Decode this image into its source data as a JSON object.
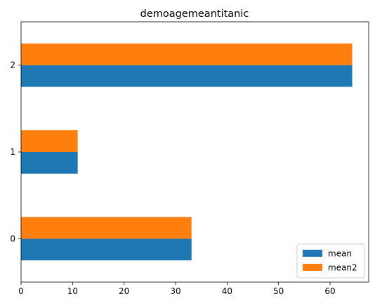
{
  "chart_data": {
    "type": "bar",
    "orientation": "horizontal",
    "title": "demoagemeantitanic",
    "xlabel": "",
    "ylabel": "",
    "categories": [
      "0",
      "1",
      "2"
    ],
    "series": [
      {
        "name": "mean",
        "values": [
          33.1,
          11.0,
          64.3
        ],
        "color": "#1f77b4"
      },
      {
        "name": "mean2",
        "values": [
          33.1,
          11.0,
          64.3
        ],
        "color": "#ff7f0e"
      }
    ],
    "xlim": [
      0,
      67.5
    ],
    "xticks": [
      0,
      10,
      20,
      30,
      40,
      50,
      60
    ],
    "grid": false,
    "legend_position": "lower-right"
  }
}
